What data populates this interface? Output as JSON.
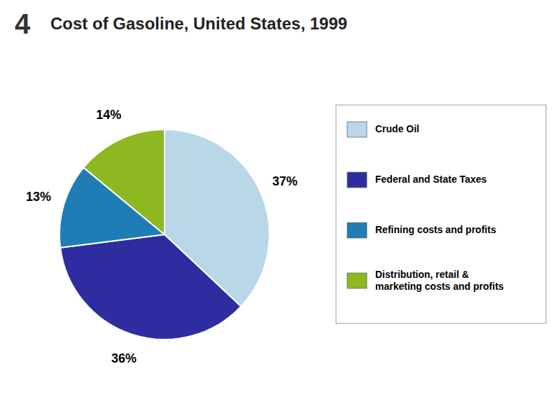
{
  "chart_data": {
    "type": "pie",
    "title": "Cost of Gasoline, United States, 1999",
    "annotations": [
      "4"
    ],
    "categories": [
      "Crude Oil",
      "Federal and State Taxes",
      "Refining costs and profits",
      "Distribution, retail &\nmarketing costs and profits"
    ],
    "values": [
      37,
      36,
      13,
      14
    ],
    "value_labels": [
      "37%",
      "36%",
      "13%",
      "14%"
    ],
    "colors": [
      "#b8d8e8",
      "#2d2d9f",
      "#1e7db5",
      "#8db820"
    ],
    "data_labels": true,
    "legend": "right"
  }
}
